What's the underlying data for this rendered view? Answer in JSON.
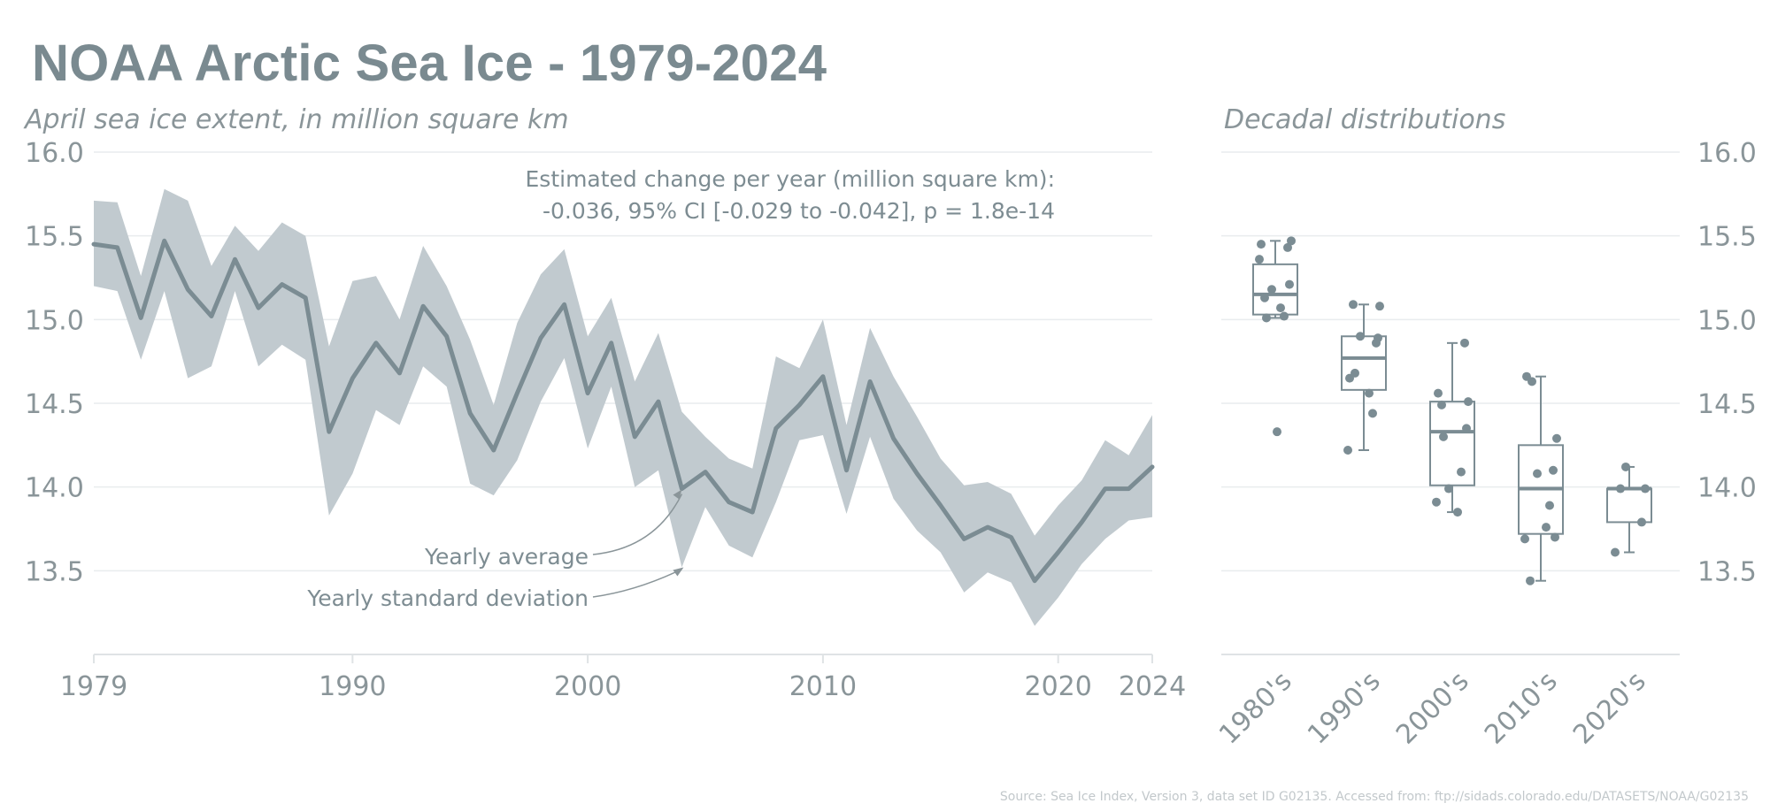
{
  "title": "NOAA Arctic Sea Ice - 1979-2024",
  "source": "Source: Sea Ice Index, Version 3, data set ID G02135. Accessed from: ftp://sidads.colorado.edu/DATASETS/NOAA/G02135",
  "colors": {
    "line": "#7b8c93",
    "band": "#c1cacf",
    "text": "#8a9599",
    "title": "#7a8a90"
  },
  "chart_data": [
    {
      "type": "line",
      "subtitle": "April sea ice extent, in million square km",
      "x": [
        1979,
        1980,
        1981,
        1982,
        1983,
        1984,
        1985,
        1986,
        1987,
        1988,
        1989,
        1990,
        1991,
        1992,
        1993,
        1994,
        1995,
        1996,
        1997,
        1998,
        1999,
        2000,
        2001,
        2002,
        2003,
        2004,
        2005,
        2006,
        2007,
        2008,
        2009,
        2010,
        2011,
        2012,
        2013,
        2014,
        2015,
        2016,
        2017,
        2018,
        2019,
        2020,
        2021,
        2022,
        2023,
        2024
      ],
      "series": [
        {
          "values": [
            15.45,
            15.43,
            15.01,
            15.47,
            15.18,
            15.02,
            15.36,
            15.07,
            15.21,
            15.13,
            14.33,
            14.65,
            14.86,
            14.68,
            15.08,
            14.9,
            14.44,
            14.22,
            14.56,
            14.89,
            15.09,
            14.56,
            14.86,
            14.3,
            14.51,
            13.99,
            14.09,
            13.91,
            13.85,
            14.35,
            14.49,
            14.66,
            14.1,
            14.63,
            14.29,
            14.08,
            13.89,
            13.69,
            13.76,
            13.7,
            13.44,
            13.61,
            13.79,
            13.99,
            13.99,
            14.12
          ],
          "upper": [
            15.71,
            15.7,
            15.26,
            15.78,
            15.71,
            15.32,
            15.56,
            15.41,
            15.58,
            15.5,
            14.84,
            15.23,
            15.26,
            15.0,
            15.44,
            15.2,
            14.88,
            14.49,
            14.98,
            15.27,
            15.42,
            14.9,
            15.13,
            14.63,
            14.92,
            14.45,
            14.3,
            14.17,
            14.11,
            14.78,
            14.71,
            15.0,
            14.37,
            14.95,
            14.66,
            14.42,
            14.17,
            14.01,
            14.03,
            13.96,
            13.71,
            13.89,
            14.04,
            14.28,
            14.19,
            14.43
          ],
          "lower": [
            15.2,
            15.17,
            14.76,
            15.17,
            14.65,
            14.72,
            15.17,
            14.72,
            14.85,
            14.76,
            13.83,
            14.08,
            14.46,
            14.37,
            14.72,
            14.6,
            14.02,
            13.95,
            14.16,
            14.51,
            14.77,
            14.23,
            14.6,
            14.0,
            14.1,
            13.52,
            13.88,
            13.65,
            13.58,
            13.91,
            14.28,
            14.31,
            13.84,
            14.3,
            13.93,
            13.74,
            13.61,
            13.37,
            13.49,
            13.43,
            13.17,
            13.34,
            13.54,
            13.69,
            13.8,
            13.82
          ]
        }
      ],
      "xticks": [
        "1979",
        "1990",
        "2000",
        "2010",
        "2020",
        "2024"
      ],
      "yticks": [
        "13.5",
        "14.0",
        "14.5",
        "15.0",
        "15.5",
        "16.0"
      ],
      "xlim": [
        1979,
        2024
      ],
      "ylim": [
        13.0,
        16.0
      ],
      "grid": true,
      "annotation_title": "Estimated change per year (million square km):",
      "annotation_stats": "-0.036, 95% CI [-0.029 to -0.042], p = 1.8e-14",
      "label_average": "Yearly average",
      "label_sd": "Yearly standard deviation"
    },
    {
      "type": "box",
      "subtitle": "Decadal distributions",
      "categories": [
        "1980's",
        "1990's",
        "2000's",
        "2010's",
        "2020's"
      ],
      "points": [
        [
          15.45,
          15.43,
          15.01,
          15.47,
          15.18,
          15.02,
          15.36,
          15.07,
          15.21,
          15.13,
          14.33
        ],
        [
          14.65,
          14.86,
          14.68,
          15.08,
          14.9,
          14.44,
          14.22,
          14.56,
          14.89,
          15.09
        ],
        [
          14.56,
          14.86,
          14.3,
          14.51,
          13.99,
          14.09,
          13.91,
          13.85,
          14.35,
          14.49
        ],
        [
          14.66,
          14.1,
          14.63,
          14.29,
          14.08,
          13.89,
          13.69,
          13.76,
          13.7,
          13.44
        ],
        [
          13.61,
          13.79,
          13.99,
          13.99,
          14.12
        ]
      ],
      "boxes": [
        {
          "q1": 15.03,
          "median": 15.15,
          "q3": 15.33,
          "low": 15.01,
          "high": 15.47
        },
        {
          "q1": 14.58,
          "median": 14.77,
          "q3": 14.9,
          "low": 14.22,
          "high": 15.09
        },
        {
          "q1": 14.01,
          "median": 14.33,
          "q3": 14.51,
          "low": 13.85,
          "high": 14.86
        },
        {
          "q1": 13.72,
          "median": 13.99,
          "q3": 14.25,
          "low": 13.44,
          "high": 14.66
        },
        {
          "q1": 13.79,
          "median": 13.99,
          "q3": 13.99,
          "low": 13.61,
          "high": 14.12
        }
      ],
      "yticks": [
        "13.5",
        "14.0",
        "14.5",
        "15.0",
        "15.5",
        "16.0"
      ],
      "ylim": [
        13.0,
        16.0
      ]
    }
  ]
}
